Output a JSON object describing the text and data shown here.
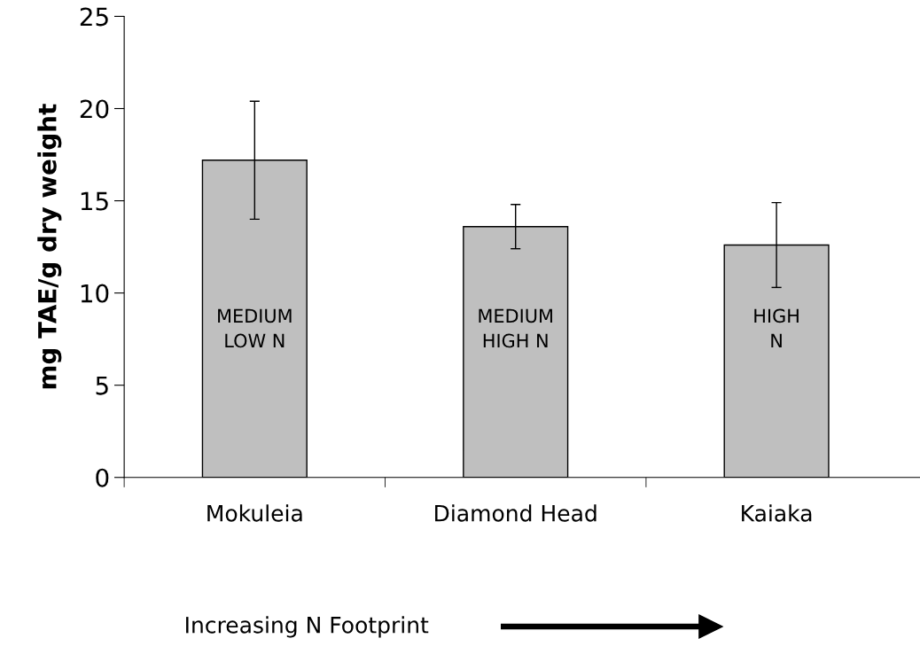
{
  "chart_data": {
    "type": "bar",
    "ylabel": "mg TAE/g dry weight",
    "xlabel": "Increasing N Footprint",
    "categories": [
      "Mokuleia",
      "Diamond Head",
      "Kaiaka"
    ],
    "values": [
      17.2,
      13.6,
      12.6
    ],
    "errors": [
      3.2,
      1.2,
      2.3
    ],
    "color": "#bfbfbf",
    "ylim": [
      0,
      25
    ],
    "yticks": [
      0,
      5,
      10,
      15,
      20,
      25
    ],
    "grid": false,
    "annotations": [
      "MEDIUM\nLOW N",
      "MEDIUM\nHIGH N",
      "HIGH\nN"
    ]
  }
}
